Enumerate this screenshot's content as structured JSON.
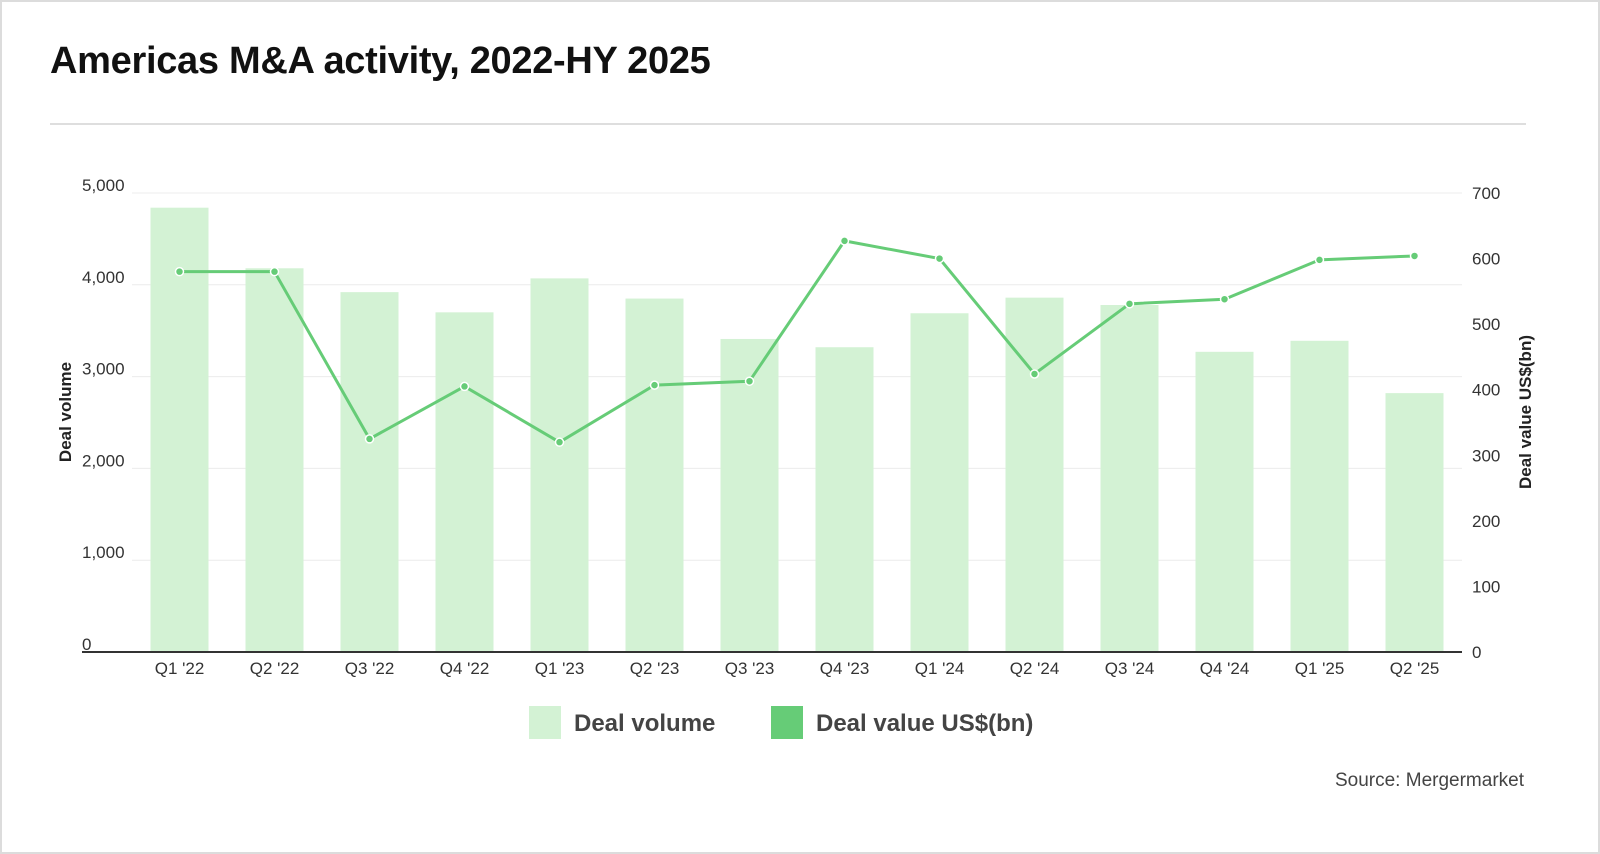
{
  "title": "Americas M&A activity, 2022-HY 2025",
  "source": "Source: Mergermarket",
  "colors": {
    "bar": "#d3f2d4",
    "line": "#66cc77",
    "grid": "#ececec",
    "axis": "#333333",
    "text": "#333333"
  },
  "chart_data": {
    "type": "bar",
    "categories": [
      "Q1 '22",
      "Q2 '22",
      "Q3 '22",
      "Q4 '22",
      "Q1 '23",
      "Q2 '23",
      "Q3 '23",
      "Q4 '23",
      "Q1 '24",
      "Q2 '24",
      "Q3 '24",
      "Q4 '24",
      "Q1 '25",
      "Q2 '25"
    ],
    "series": [
      {
        "name": "Deal volume",
        "type": "bar",
        "axis": "left",
        "values": [
          4840,
          4180,
          3920,
          3700,
          4070,
          3850,
          3410,
          3320,
          3690,
          3860,
          3780,
          3270,
          3390,
          2820
        ]
      },
      {
        "name": "Deal value US$(bn)",
        "type": "line",
        "axis": "right",
        "values": [
          580,
          580,
          325,
          405,
          320,
          407,
          413,
          627,
          600,
          424,
          531,
          538,
          598,
          604
        ]
      }
    ],
    "ylabel": "Deal volume",
    "y2label": "Deal value US$(bn)",
    "ylim": [
      0,
      5000
    ],
    "y2lim": [
      0,
      700
    ],
    "yticks": [
      "0",
      "1,000",
      "2,000",
      "3,000",
      "4,000",
      "5,000"
    ],
    "y2ticks": [
      "0",
      "100",
      "200",
      "300",
      "400",
      "500",
      "600",
      "700"
    ],
    "legend_position": "bottom-center",
    "grid": true
  }
}
